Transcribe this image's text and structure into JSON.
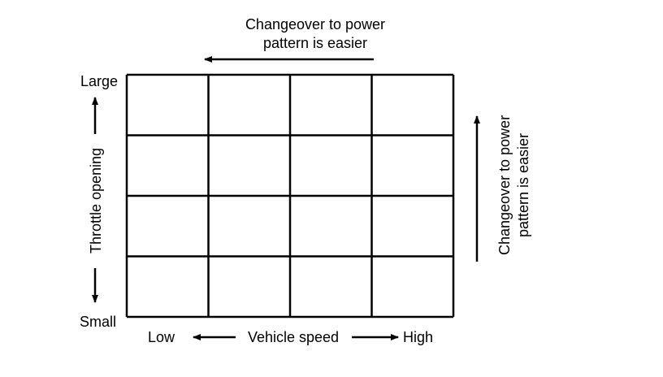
{
  "top_label": {
    "line1": "Changeover to power",
    "line2": "pattern is easier"
  },
  "right_label": {
    "line1": "Changeover to power",
    "line2": "pattern is easier"
  },
  "y_axis": {
    "title": "Throttle opening",
    "max_label": "Large",
    "min_label": "Small"
  },
  "x_axis": {
    "title": "Vehicle speed",
    "min_label": "Low",
    "max_label": "High"
  },
  "grid": {
    "columns": 4,
    "rows": 4
  }
}
